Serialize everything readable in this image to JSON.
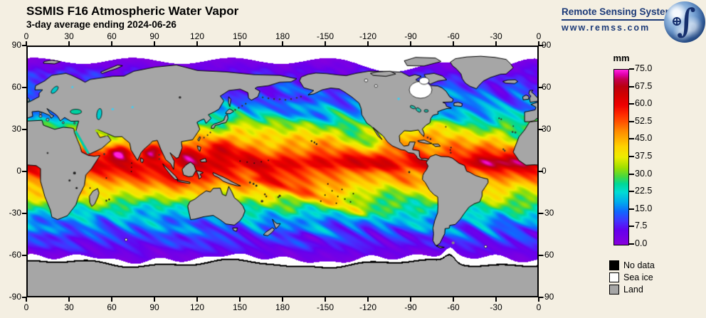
{
  "header": {
    "title": "SSMIS F16 Atmospheric Water Vapor",
    "subtitle": "3-day average ending 2024-06-26"
  },
  "logo": {
    "name": "Remote Sensing Systems",
    "url": "www.remss.com"
  },
  "axes": {
    "lon_labels": [
      "0",
      "30",
      "60",
      "90",
      "120",
      "150",
      "180",
      "-150",
      "-120",
      "-90",
      "-60",
      "-30",
      "0"
    ],
    "lat_labels": [
      "90",
      "60",
      "30",
      "0",
      "-30",
      "-60",
      "-90"
    ]
  },
  "colorbar": {
    "unit": "mm",
    "tick_labels": [
      "75.0",
      "67.5",
      "60.0",
      "52.5",
      "45.0",
      "37.5",
      "30.0",
      "22.5",
      "15.0",
      "7.5",
      "0.0"
    ],
    "min": 0,
    "max": 75
  },
  "legend": [
    {
      "label": "No data",
      "color": "#000000"
    },
    {
      "label": "Sea ice",
      "color": "#FFFFFF"
    },
    {
      "label": "Land",
      "color": "#A6A6A6"
    }
  ],
  "map": {
    "background": "#F4EFE2",
    "land_color": "#A6A6A6",
    "ice_color": "#FFFFFF",
    "coast_color": "#000000",
    "colormap": [
      [
        0,
        "#8800DD"
      ],
      [
        6,
        "#6600EE"
      ],
      [
        10,
        "#4433FF"
      ],
      [
        14,
        "#1166FF"
      ],
      [
        18,
        "#00AAEE"
      ],
      [
        22.5,
        "#00DDD4"
      ],
      [
        26,
        "#00D898"
      ],
      [
        29,
        "#44D843"
      ],
      [
        33,
        "#9FE000"
      ],
      [
        37.5,
        "#EEEE00"
      ],
      [
        42,
        "#FFD400"
      ],
      [
        45,
        "#FFB300"
      ],
      [
        49,
        "#FF8800"
      ],
      [
        52.5,
        "#FF5500"
      ],
      [
        56,
        "#FF2A00"
      ],
      [
        60,
        "#EE0000"
      ],
      [
        64,
        "#D40000"
      ],
      [
        68,
        "#BB0011"
      ],
      [
        71,
        "#C4004F"
      ],
      [
        73,
        "#E100AA"
      ],
      [
        75,
        "#FF22DD"
      ]
    ]
  }
}
